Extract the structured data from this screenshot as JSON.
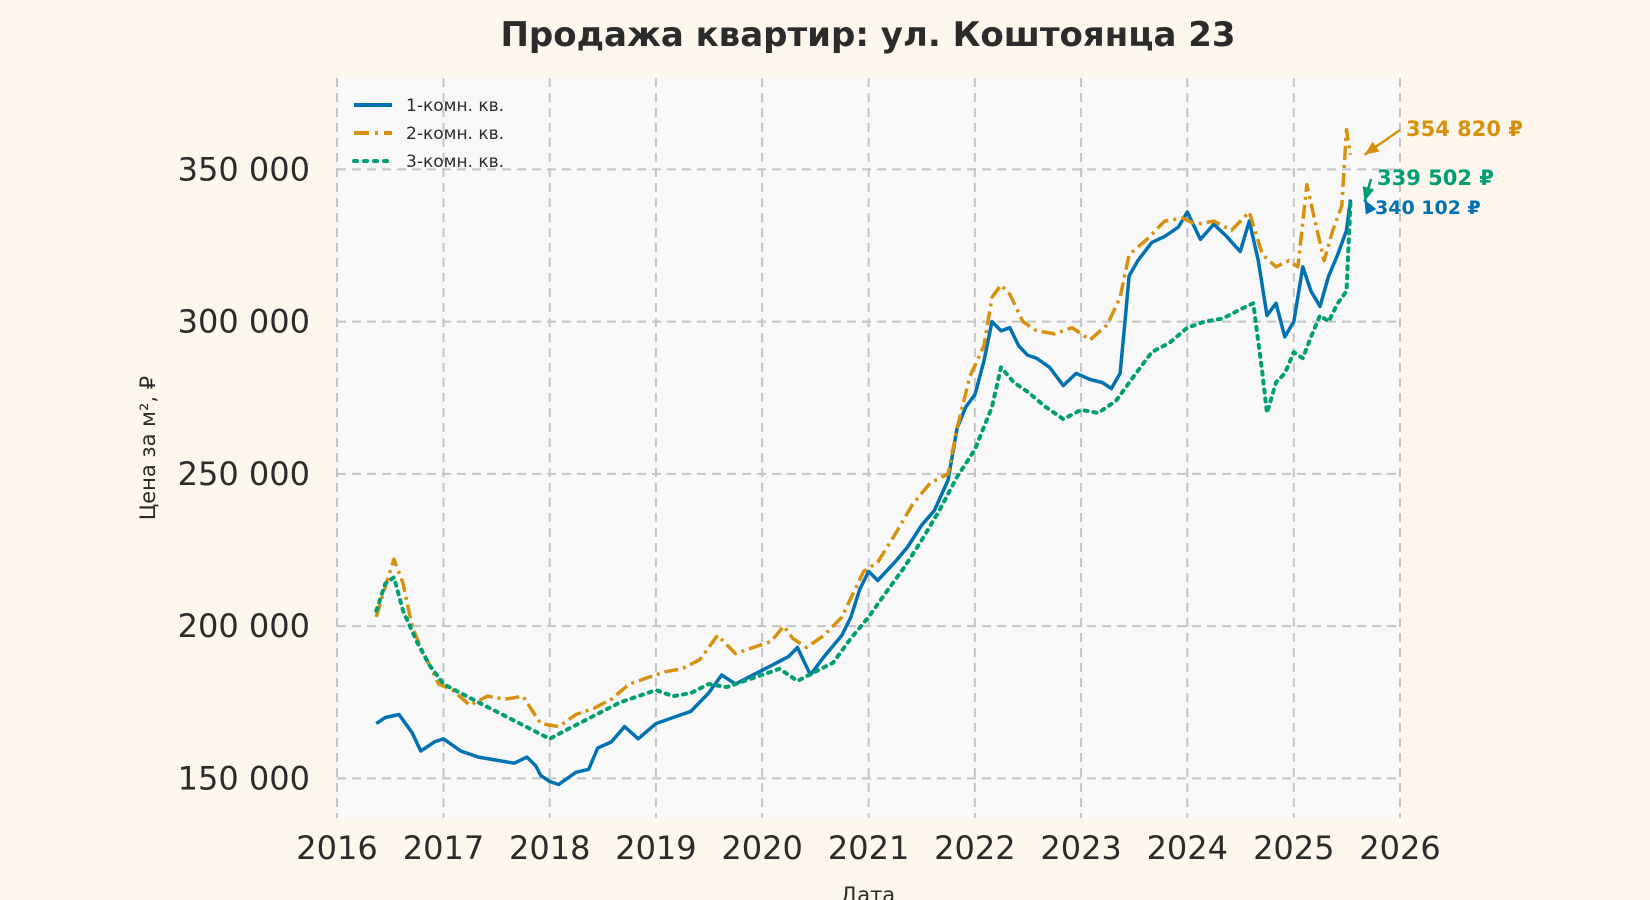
{
  "chart_data": {
    "type": "line",
    "title": "Продажа квартир: ул. Коштоянца 23",
    "xlabel": "Дата",
    "ylabel": "Цена за м², ₽",
    "xlim": [
      "2016-01-01",
      "2026-01-01"
    ],
    "ylim": [
      137000,
      380000
    ],
    "x_ticks": [
      "2016",
      "2017",
      "2018",
      "2019",
      "2020",
      "2021",
      "2022",
      "2023",
      "2024",
      "2025",
      "2026"
    ],
    "y_ticks": [
      150000,
      200000,
      250000,
      300000,
      350000
    ],
    "y_tick_labels": [
      "150 000",
      "200 000",
      "250 000",
      "300 000",
      "350 000"
    ],
    "grid": true,
    "legend_position": "top-left",
    "background": "#fdf6ec",
    "plot_background": "#f8f8f8",
    "series": [
      {
        "name": "1-комн. кв.",
        "color": "#0072b2",
        "style": "solid",
        "points": [
          [
            "2016-05-15",
            168000
          ],
          [
            "2016-06-15",
            170000
          ],
          [
            "2016-08-01",
            171000
          ],
          [
            "2016-09-15",
            165000
          ],
          [
            "2016-10-15",
            159000
          ],
          [
            "2016-12-01",
            162000
          ],
          [
            "2017-01-01",
            163000
          ],
          [
            "2017-03-01",
            159000
          ],
          [
            "2017-05-01",
            157000
          ],
          [
            "2017-07-01",
            156000
          ],
          [
            "2017-09-01",
            155000
          ],
          [
            "2017-10-15",
            157000
          ],
          [
            "2017-11-15",
            154000
          ],
          [
            "2017-12-01",
            151000
          ],
          [
            "2018-01-01",
            149000
          ],
          [
            "2018-02-01",
            148000
          ],
          [
            "2018-04-01",
            152000
          ],
          [
            "2018-05-15",
            153000
          ],
          [
            "2018-06-15",
            160000
          ],
          [
            "2018-08-01",
            162000
          ],
          [
            "2018-09-15",
            167000
          ],
          [
            "2018-11-01",
            163000
          ],
          [
            "2019-01-01",
            168000
          ],
          [
            "2019-03-01",
            170000
          ],
          [
            "2019-05-01",
            172000
          ],
          [
            "2019-07-01",
            178000
          ],
          [
            "2019-08-15",
            184000
          ],
          [
            "2019-10-01",
            181000
          ],
          [
            "2019-12-01",
            184000
          ],
          [
            "2020-02-01",
            187000
          ],
          [
            "2020-04-01",
            190000
          ],
          [
            "2020-05-01",
            193000
          ],
          [
            "2020-06-15",
            184000
          ],
          [
            "2020-08-01",
            190000
          ],
          [
            "2020-10-01",
            197000
          ],
          [
            "2020-11-01",
            203000
          ],
          [
            "2020-12-01",
            212000
          ],
          [
            "2021-01-01",
            218000
          ],
          [
            "2021-02-01",
            215000
          ],
          [
            "2021-04-01",
            221000
          ],
          [
            "2021-05-15",
            226000
          ],
          [
            "2021-07-01",
            233000
          ],
          [
            "2021-08-15",
            238000
          ],
          [
            "2021-10-01",
            248000
          ],
          [
            "2021-11-01",
            265000
          ],
          [
            "2021-12-01",
            272000
          ],
          [
            "2022-01-01",
            276000
          ],
          [
            "2022-02-01",
            287000
          ],
          [
            "2022-03-01",
            300000
          ],
          [
            "2022-04-01",
            297000
          ],
          [
            "2022-05-01",
            298000
          ],
          [
            "2022-06-01",
            292000
          ],
          [
            "2022-07-01",
            289000
          ],
          [
            "2022-08-01",
            288000
          ],
          [
            "2022-09-15",
            285000
          ],
          [
            "2022-11-01",
            279000
          ],
          [
            "2022-12-15",
            283000
          ],
          [
            "2023-02-01",
            281000
          ],
          [
            "2023-03-15",
            280000
          ],
          [
            "2023-04-15",
            278000
          ],
          [
            "2023-05-15",
            283000
          ],
          [
            "2023-06-01",
            300000
          ],
          [
            "2023-06-15",
            315000
          ],
          [
            "2023-07-15",
            320000
          ],
          [
            "2023-09-01",
            326000
          ],
          [
            "2023-10-15",
            328000
          ],
          [
            "2023-12-01",
            331000
          ],
          [
            "2024-01-01",
            336000
          ],
          [
            "2024-02-15",
            327000
          ],
          [
            "2024-04-01",
            332000
          ],
          [
            "2024-05-15",
            328000
          ],
          [
            "2024-07-01",
            323000
          ],
          [
            "2024-08-01",
            333000
          ],
          [
            "2024-09-01",
            320000
          ],
          [
            "2024-10-01",
            302000
          ],
          [
            "2024-11-01",
            306000
          ],
          [
            "2024-12-01",
            295000
          ],
          [
            "2025-01-01",
            300000
          ],
          [
            "2025-02-01",
            318000
          ],
          [
            "2025-03-01",
            310000
          ],
          [
            "2025-04-01",
            305000
          ],
          [
            "2025-05-01",
            315000
          ],
          [
            "2025-06-01",
            322000
          ],
          [
            "2025-07-01",
            330000
          ],
          [
            "2025-07-15",
            340102
          ]
        ]
      },
      {
        "name": "2-комн. кв.",
        "color": "#d8900f",
        "style": "dashdot",
        "points": [
          [
            "2016-05-15",
            203000
          ],
          [
            "2016-06-15",
            213000
          ],
          [
            "2016-07-15",
            222000
          ],
          [
            "2016-08-15",
            214000
          ],
          [
            "2016-09-15",
            200000
          ],
          [
            "2016-10-15",
            193000
          ],
          [
            "2016-11-15",
            187000
          ],
          [
            "2016-12-15",
            181000
          ],
          [
            "2017-02-01",
            179000
          ],
          [
            "2017-04-01",
            174000
          ],
          [
            "2017-06-01",
            177000
          ],
          [
            "2017-08-01",
            176000
          ],
          [
            "2017-10-01",
            177000
          ],
          [
            "2017-12-01",
            168000
          ],
          [
            "2018-02-01",
            167000
          ],
          [
            "2018-04-01",
            171000
          ],
          [
            "2018-06-01",
            173000
          ],
          [
            "2018-08-01",
            176000
          ],
          [
            "2018-10-01",
            181000
          ],
          [
            "2018-12-01",
            183000
          ],
          [
            "2019-02-01",
            185000
          ],
          [
            "2019-04-01",
            186000
          ],
          [
            "2019-06-01",
            189000
          ],
          [
            "2019-08-01",
            197000
          ],
          [
            "2019-10-01",
            191000
          ],
          [
            "2019-12-01",
            193000
          ],
          [
            "2020-02-01",
            195000
          ],
          [
            "2020-03-15",
            200000
          ],
          [
            "2020-04-15",
            196000
          ],
          [
            "2020-06-01",
            193000
          ],
          [
            "2020-08-01",
            197000
          ],
          [
            "2020-10-01",
            203000
          ],
          [
            "2020-11-15",
            212000
          ],
          [
            "2020-12-15",
            218000
          ],
          [
            "2021-02-01",
            221000
          ],
          [
            "2021-04-01",
            230000
          ],
          [
            "2021-06-01",
            240000
          ],
          [
            "2021-08-01",
            247000
          ],
          [
            "2021-10-01",
            250000
          ],
          [
            "2021-11-01",
            265000
          ],
          [
            "2021-12-15",
            282000
          ],
          [
            "2022-02-01",
            292000
          ],
          [
            "2022-03-01",
            308000
          ],
          [
            "2022-04-01",
            312000
          ],
          [
            "2022-05-01",
            309000
          ],
          [
            "2022-06-15",
            300000
          ],
          [
            "2022-08-01",
            297000
          ],
          [
            "2022-10-01",
            296000
          ],
          [
            "2022-12-01",
            298000
          ],
          [
            "2023-02-01",
            294000
          ],
          [
            "2023-04-01",
            299000
          ],
          [
            "2023-05-15",
            308000
          ],
          [
            "2023-06-15",
            322000
          ],
          [
            "2023-08-15",
            327000
          ],
          [
            "2023-10-15",
            333000
          ],
          [
            "2023-12-15",
            334000
          ],
          [
            "2024-02-01",
            332000
          ],
          [
            "2024-04-01",
            333000
          ],
          [
            "2024-06-01",
            330000
          ],
          [
            "2024-08-01",
            336000
          ],
          [
            "2024-09-15",
            322000
          ],
          [
            "2024-11-01",
            318000
          ],
          [
            "2024-12-15",
            320000
          ],
          [
            "2025-01-15",
            318000
          ],
          [
            "2025-02-15",
            345000
          ],
          [
            "2025-03-15",
            333000
          ],
          [
            "2025-04-15",
            320000
          ],
          [
            "2025-05-15",
            330000
          ],
          [
            "2025-06-15",
            338000
          ],
          [
            "2025-07-01",
            363000
          ],
          [
            "2025-07-15",
            354820
          ]
        ]
      },
      {
        "name": "3-комн. кв.",
        "color": "#009e73",
        "style": "dotted",
        "points": [
          [
            "2016-05-15",
            205000
          ],
          [
            "2016-06-15",
            214000
          ],
          [
            "2016-07-15",
            216000
          ],
          [
            "2016-08-15",
            205000
          ],
          [
            "2016-10-01",
            195000
          ],
          [
            "2016-11-15",
            187000
          ],
          [
            "2017-01-01",
            181000
          ],
          [
            "2017-03-01",
            178000
          ],
          [
            "2017-05-01",
            175000
          ],
          [
            "2017-07-01",
            172000
          ],
          [
            "2017-09-01",
            169000
          ],
          [
            "2017-11-01",
            166000
          ],
          [
            "2018-01-01",
            163000
          ],
          [
            "2018-03-01",
            166000
          ],
          [
            "2018-05-01",
            169000
          ],
          [
            "2018-07-01",
            172000
          ],
          [
            "2018-09-01",
            175000
          ],
          [
            "2018-11-01",
            177000
          ],
          [
            "2019-01-01",
            179000
          ],
          [
            "2019-03-01",
            177000
          ],
          [
            "2019-05-01",
            178000
          ],
          [
            "2019-07-01",
            181000
          ],
          [
            "2019-09-01",
            180000
          ],
          [
            "2019-11-01",
            182000
          ],
          [
            "2020-01-01",
            184000
          ],
          [
            "2020-03-01",
            186000
          ],
          [
            "2020-05-01",
            182000
          ],
          [
            "2020-07-01",
            185000
          ],
          [
            "2020-09-01",
            188000
          ],
          [
            "2020-11-01",
            196000
          ],
          [
            "2021-01-01",
            203000
          ],
          [
            "2021-03-01",
            211000
          ],
          [
            "2021-05-01",
            219000
          ],
          [
            "2021-07-01",
            228000
          ],
          [
            "2021-09-01",
            238000
          ],
          [
            "2021-11-01",
            249000
          ],
          [
            "2022-01-01",
            258000
          ],
          [
            "2022-03-01",
            272000
          ],
          [
            "2022-04-01",
            285000
          ],
          [
            "2022-05-15",
            280000
          ],
          [
            "2022-07-01",
            277000
          ],
          [
            "2022-09-01",
            272000
          ],
          [
            "2022-11-01",
            268000
          ],
          [
            "2023-01-01",
            271000
          ],
          [
            "2023-03-01",
            270000
          ],
          [
            "2023-05-01",
            274000
          ],
          [
            "2023-07-01",
            282000
          ],
          [
            "2023-09-01",
            290000
          ],
          [
            "2023-11-01",
            293000
          ],
          [
            "2024-01-01",
            298000
          ],
          [
            "2024-03-01",
            300000
          ],
          [
            "2024-05-01",
            301000
          ],
          [
            "2024-07-01",
            304000
          ],
          [
            "2024-08-15",
            306000
          ],
          [
            "2024-09-15",
            283000
          ],
          [
            "2024-10-01",
            270000
          ],
          [
            "2024-11-01",
            280000
          ],
          [
            "2024-12-01",
            283000
          ],
          [
            "2025-01-01",
            290000
          ],
          [
            "2025-02-01",
            288000
          ],
          [
            "2025-03-01",
            295000
          ],
          [
            "2025-04-01",
            302000
          ],
          [
            "2025-05-01",
            300000
          ],
          [
            "2025-06-01",
            306000
          ],
          [
            "2025-07-01",
            310000
          ],
          [
            "2025-07-15",
            339502
          ]
        ]
      }
    ],
    "annotations": [
      {
        "text": "354 820 ₽",
        "color": "#d8900f",
        "series": "2-комн. кв."
      },
      {
        "text": "339 502 ₽",
        "color": "#009e73",
        "series": "3-комн. кв."
      },
      {
        "text": "340 102 ₽",
        "color": "#0072b2",
        "series": "1-комн. кв."
      }
    ]
  }
}
